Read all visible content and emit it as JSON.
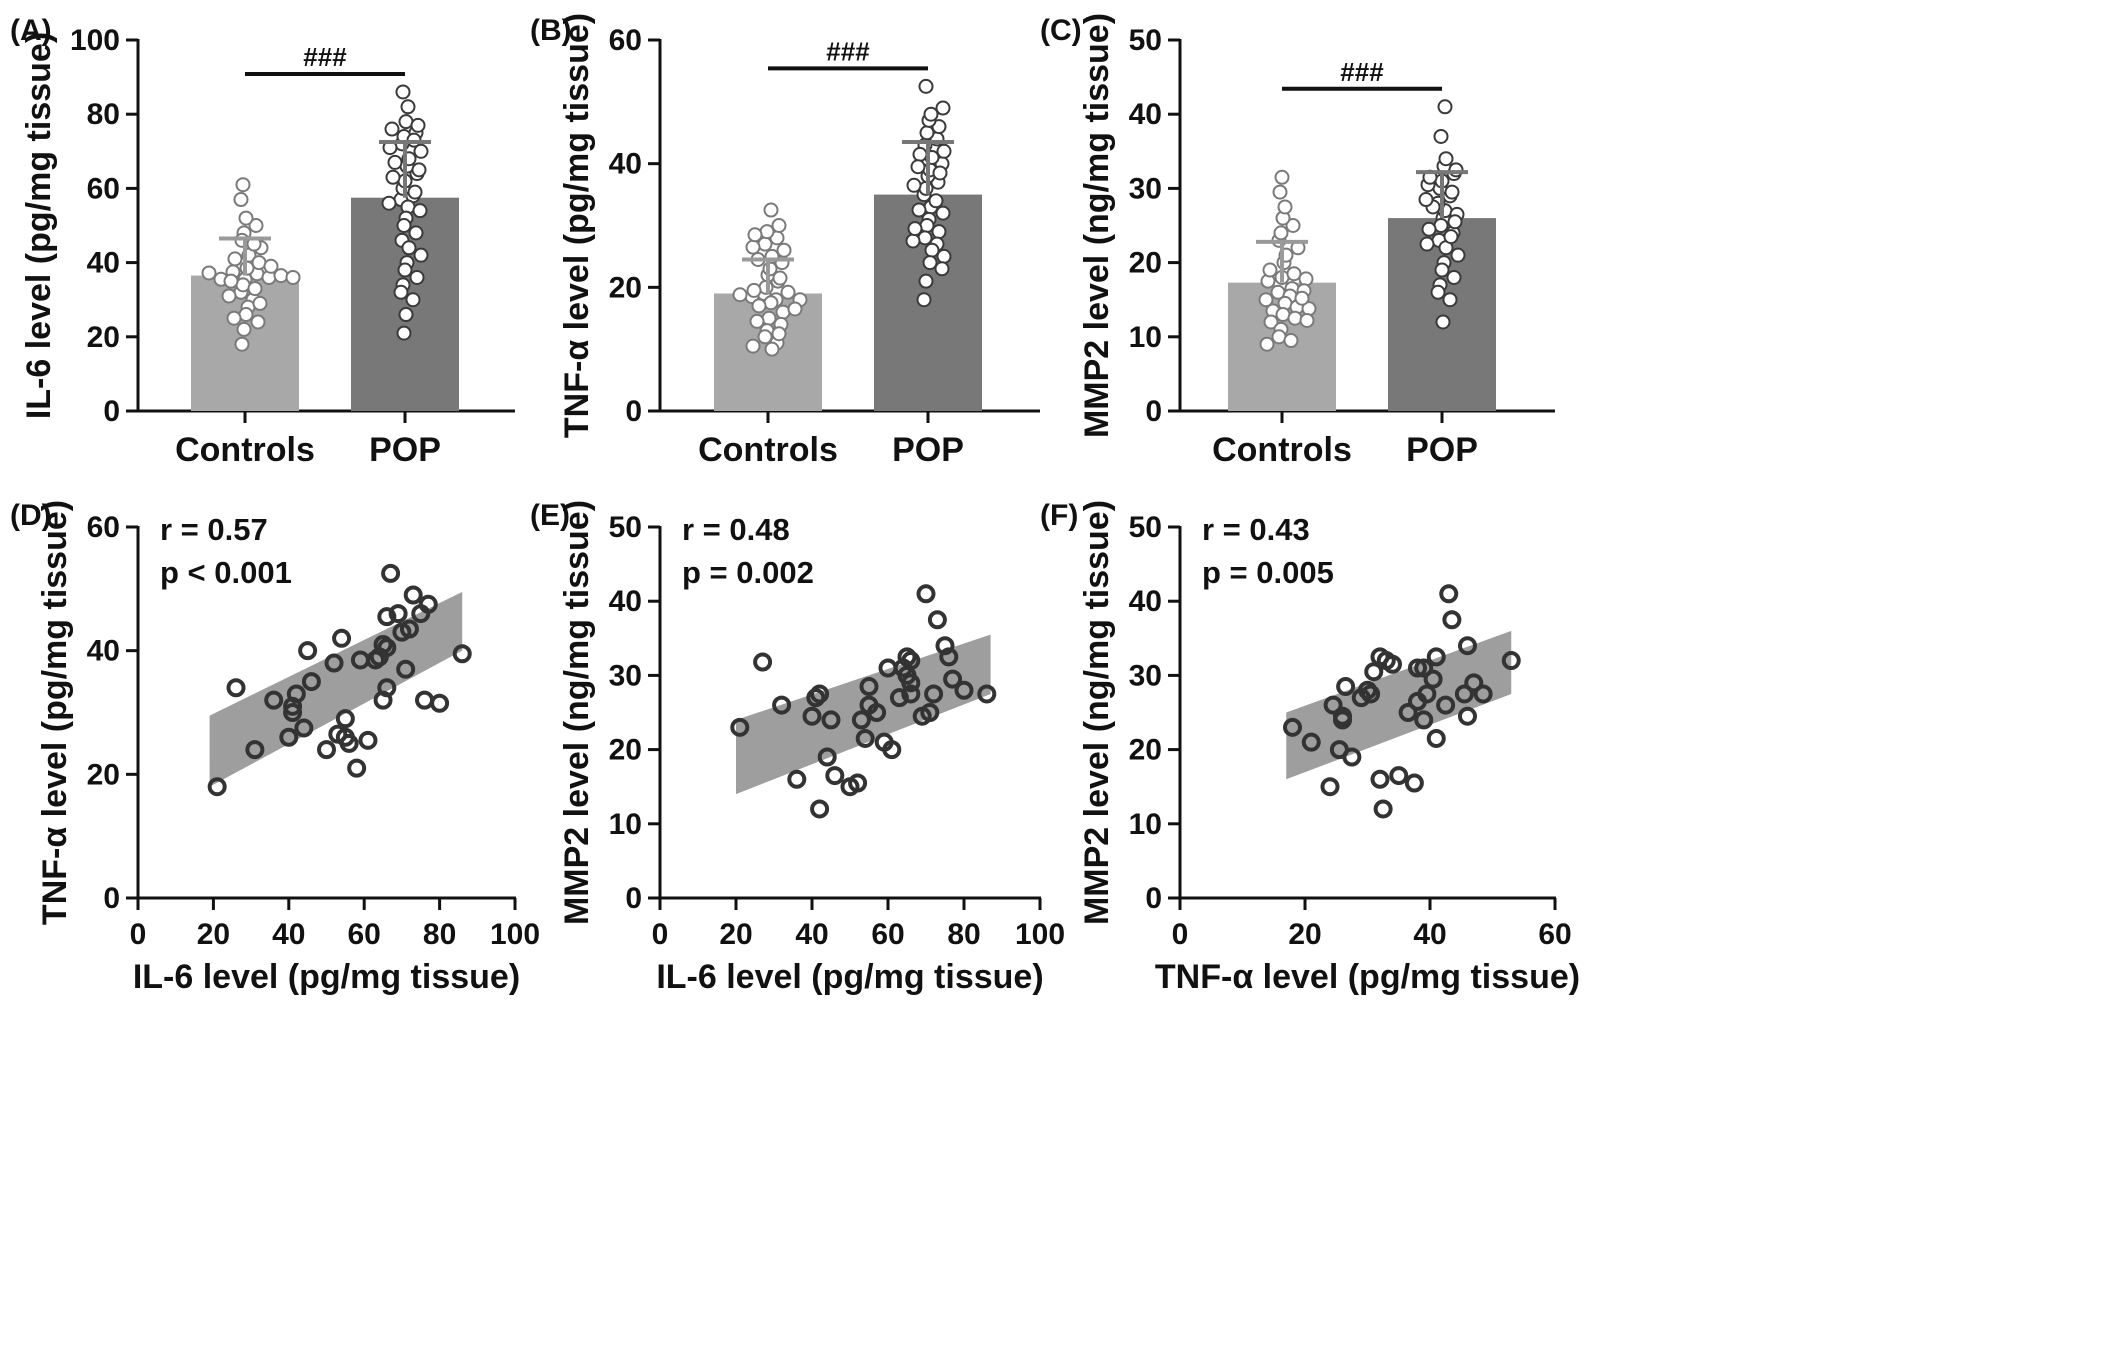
{
  "figure": {
    "background": "#ffffff",
    "point_color": "#333333",
    "band_color": "#9e9e9e"
  },
  "chart_data": [
    {
      "type": "bar",
      "panel_label": "(A)",
      "categories": [
        "Controls",
        "POP"
      ],
      "values": [
        36.5,
        57.5
      ],
      "errors": [
        10,
        15
      ],
      "bar_colors": [
        "#a8a8a8",
        "#787878"
      ],
      "ylabel": "IL-6 level (pg/mg tissue)",
      "ylim": [
        0,
        100
      ],
      "yticks": [
        0,
        20,
        40,
        60,
        80,
        100
      ],
      "significance": "###",
      "points": [
        [
          35.5,
          37,
          37.5,
          36,
          35.5,
          36.5,
          37.2,
          42,
          44,
          48,
          50,
          52,
          61,
          57,
          46,
          38.5,
          32,
          30,
          28,
          26,
          24,
          22,
          18,
          34,
          40,
          45,
          41,
          31,
          29,
          25,
          33,
          39,
          36,
          35
        ],
        [
          57,
          58,
          60,
          62,
          64,
          66,
          68,
          70,
          72,
          74,
          75,
          76,
          78,
          86,
          82,
          77,
          73,
          65,
          63,
          55,
          54,
          52,
          50,
          48,
          46,
          44,
          42,
          40,
          38,
          36,
          34,
          32,
          30,
          26,
          21,
          71,
          67,
          59,
          56
        ]
      ]
    },
    {
      "type": "bar",
      "panel_label": "(B)",
      "categories": [
        "Controls",
        "POP"
      ],
      "values": [
        19,
        35
      ],
      "errors": [
        5.5,
        8.5
      ],
      "bar_colors": [
        "#a8a8a8",
        "#787878"
      ],
      "ylabel": "TNF-α level (pg/mg tissue)",
      "ylim": [
        0,
        60
      ],
      "yticks": [
        0,
        20,
        40,
        60
      ],
      "significance": "###",
      "points": [
        [
          19,
          18,
          18.5,
          17.5,
          19.2,
          18.8,
          20,
          21,
          22,
          23,
          24,
          25,
          26,
          27,
          28,
          29,
          32.5,
          30,
          16,
          15,
          14,
          13,
          12,
          11,
          10,
          17,
          18,
          19.5,
          21.5,
          24.5,
          26.5,
          28.5,
          16.5,
          14.5,
          12.5,
          10.5
        ],
        [
          35,
          36,
          37,
          38,
          39,
          40,
          41,
          42,
          43,
          44,
          45,
          46,
          47,
          48,
          49,
          52.5,
          33,
          32,
          31,
          30,
          29,
          28,
          27,
          26,
          25,
          24,
          23,
          21,
          18,
          34,
          38.5,
          41.5,
          39.5,
          36.5,
          32.5,
          27.5,
          29.5
        ]
      ]
    },
    {
      "type": "bar",
      "panel_label": "(C)",
      "categories": [
        "Controls",
        "POP"
      ],
      "values": [
        17.3,
        26
      ],
      "errors": [
        5.5,
        6.2
      ],
      "bar_colors": [
        "#a8a8a8",
        "#787878"
      ],
      "ylabel": "MMP2 level (ng/mg tissue)",
      "ylim": [
        0,
        50
      ],
      "yticks": [
        0,
        10,
        20,
        30,
        40,
        50
      ],
      "significance": "###",
      "points": [
        [
          17,
          16.5,
          17.5,
          18,
          18.5,
          19,
          16,
          15.5,
          15,
          14.5,
          14,
          13.5,
          13,
          12.5,
          12,
          11,
          10,
          9.5,
          9,
          20,
          21,
          22,
          23,
          24,
          25,
          26,
          27.5,
          29.5,
          31.5,
          17.8,
          16.2,
          13.8,
          12.2,
          15.2
        ],
        [
          26,
          27,
          28,
          29,
          30,
          31,
          32,
          33,
          34,
          37,
          41,
          25,
          24,
          23,
          22,
          21,
          20,
          19,
          18,
          17,
          16,
          15,
          12,
          26.5,
          27.5,
          28.5,
          29.5,
          30.5,
          31.5,
          32.5,
          25.5,
          24.5,
          23.5,
          22.5
        ]
      ]
    },
    {
      "type": "scatter",
      "panel_label": "(D)",
      "xlabel": "IL-6 level (pg/mg tissue)",
      "ylabel": "TNF-α level (pg/mg tissue)",
      "xlim": [
        0,
        100
      ],
      "ylim": [
        0,
        60
      ],
      "xticks": [
        0,
        20,
        40,
        60,
        80,
        100
      ],
      "yticks": [
        0,
        20,
        40,
        60
      ],
      "stats": [
        "r = 0.57",
        "p < 0.001"
      ],
      "band": {
        "x0": 19,
        "x1": 86,
        "upper": [
          29.5,
          49.5
        ],
        "lower": [
          18,
          40
        ]
      },
      "points": [
        [
          21,
          18
        ],
        [
          26,
          34
        ],
        [
          31,
          24
        ],
        [
          36,
          32
        ],
        [
          40,
          26
        ],
        [
          41,
          31
        ],
        [
          42,
          33
        ],
        [
          41,
          30
        ],
        [
          44,
          27.5
        ],
        [
          45,
          40
        ],
        [
          46,
          35
        ],
        [
          50,
          24
        ],
        [
          52,
          38
        ],
        [
          53,
          26.5
        ],
        [
          54,
          42
        ],
        [
          55,
          29
        ],
        [
          55,
          26
        ],
        [
          56,
          25
        ],
        [
          58,
          21
        ],
        [
          59,
          38.5
        ],
        [
          61,
          25.5
        ],
        [
          63,
          38.5
        ],
        [
          64,
          39
        ],
        [
          65,
          41
        ],
        [
          65,
          32
        ],
        [
          66,
          34
        ],
        [
          66,
          45.5
        ],
        [
          66,
          40.5
        ],
        [
          67,
          52.5
        ],
        [
          69,
          46
        ],
        [
          70,
          43
        ],
        [
          71,
          37
        ],
        [
          72,
          43.5
        ],
        [
          73,
          49
        ],
        [
          75,
          46
        ],
        [
          76,
          32
        ],
        [
          77,
          47.5
        ],
        [
          80,
          31.5
        ],
        [
          86,
          39.5
        ]
      ]
    },
    {
      "type": "scatter",
      "panel_label": "(E)",
      "xlabel": "IL-6 level (pg/mg tissue)",
      "ylabel": "MMP2 level (ng/mg tissue)",
      "xlim": [
        0,
        100
      ],
      "ylim": [
        0,
        50
      ],
      "xticks": [
        0,
        20,
        40,
        60,
        80,
        100
      ],
      "yticks": [
        0,
        10,
        20,
        30,
        40,
        50
      ],
      "stats": [
        "r = 0.48",
        "p = 0.002"
      ],
      "band": {
        "x0": 20,
        "x1": 87,
        "upper": [
          24,
          35.5
        ],
        "lower": [
          14,
          27.5
        ]
      },
      "points": [
        [
          21,
          23
        ],
        [
          27,
          31.8
        ],
        [
          32,
          26
        ],
        [
          36,
          16
        ],
        [
          40,
          24.5
        ],
        [
          41,
          27
        ],
        [
          42,
          27.5
        ],
        [
          42,
          12
        ],
        [
          44,
          19
        ],
        [
          45,
          24
        ],
        [
          46,
          16.5
        ],
        [
          50,
          15
        ],
        [
          52,
          15.5
        ],
        [
          53,
          24
        ],
        [
          54,
          21.5
        ],
        [
          55,
          26
        ],
        [
          55,
          28.5
        ],
        [
          57,
          25
        ],
        [
          59,
          21
        ],
        [
          60,
          31
        ],
        [
          61,
          20
        ],
        [
          63,
          27
        ],
        [
          64,
          31
        ],
        [
          65,
          32.5
        ],
        [
          65,
          30
        ],
        [
          66,
          32
        ],
        [
          66,
          27.5
        ],
        [
          66,
          29
        ],
        [
          69,
          24.5
        ],
        [
          70,
          41
        ],
        [
          71,
          25
        ],
        [
          72,
          27.5
        ],
        [
          73,
          37.5
        ],
        [
          75,
          34
        ],
        [
          76,
          32.5
        ],
        [
          77,
          29.5
        ],
        [
          80,
          28
        ],
        [
          86,
          27.5
        ]
      ]
    },
    {
      "type": "scatter",
      "panel_label": "(F)",
      "xlabel": "TNF-α level (pg/mg tissue)",
      "ylabel": "MMP2 level (ng/mg tissue)",
      "xlim": [
        0,
        60
      ],
      "ylim": [
        0,
        50
      ],
      "xticks": [
        0,
        20,
        40,
        60
      ],
      "yticks": [
        0,
        10,
        20,
        30,
        40,
        50
      ],
      "stats": [
        "r = 0.43",
        "p = 0.005"
      ],
      "band": {
        "x0": 17,
        "x1": 53,
        "upper": [
          25,
          36
        ],
        "lower": [
          16,
          27.5
        ]
      },
      "points": [
        [
          18,
          23
        ],
        [
          21,
          21
        ],
        [
          24,
          15
        ],
        [
          24.5,
          26
        ],
        [
          25.5,
          20
        ],
        [
          26,
          24.5
        ],
        [
          26,
          24
        ],
        [
          26.5,
          28.5
        ],
        [
          27.5,
          19
        ],
        [
          29,
          27
        ],
        [
          30,
          28
        ],
        [
          30.5,
          27.5
        ],
        [
          31,
          30.5
        ],
        [
          32,
          32.5
        ],
        [
          32,
          16
        ],
        [
          32.5,
          12
        ],
        [
          33,
          32
        ],
        [
          34,
          31.5
        ],
        [
          35,
          16.5
        ],
        [
          36.5,
          25
        ],
        [
          37.5,
          15.5
        ],
        [
          38,
          26.5
        ],
        [
          38,
          31
        ],
        [
          39,
          31
        ],
        [
          39,
          24
        ],
        [
          39.5,
          27.5
        ],
        [
          40.5,
          29.5
        ],
        [
          41,
          21.5
        ],
        [
          41,
          32.5
        ],
        [
          42.5,
          26
        ],
        [
          43,
          41
        ],
        [
          43.5,
          37.5
        ],
        [
          45.5,
          27.5
        ],
        [
          46,
          34
        ],
        [
          46,
          24.5
        ],
        [
          47,
          29
        ],
        [
          48.5,
          27.5
        ],
        [
          53,
          32
        ]
      ]
    }
  ]
}
